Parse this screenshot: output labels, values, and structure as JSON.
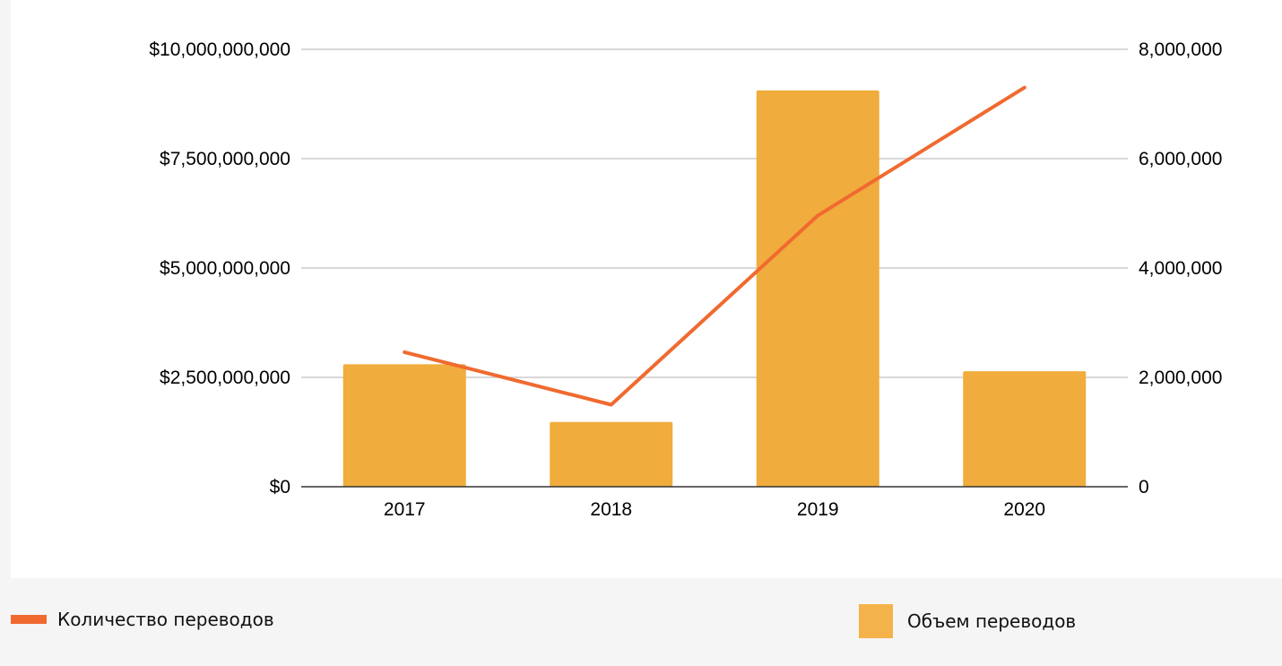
{
  "chart_data": {
    "type": "bar",
    "categories": [
      "2017",
      "2018",
      "2019",
      "2020"
    ],
    "series": [
      {
        "name": "Объем переводов",
        "kind": "bar",
        "axis": "left",
        "values": [
          2800000000,
          1480000000,
          9060000000,
          2640000000
        ],
        "color": "#f0ac3c"
      },
      {
        "name": "Количество переводов",
        "kind": "line",
        "axis": "right",
        "values": [
          2460000,
          1500000,
          4960000,
          7300000
        ],
        "color": "#f06a30"
      }
    ],
    "left_axis": {
      "ylim": [
        0,
        10000000000
      ],
      "ticks": [
        0,
        2500000000,
        5000000000,
        7500000000,
        10000000000
      ],
      "tick_labels": [
        "$0",
        "$2,500,000,000",
        "$5,000,000,000",
        "$7,500,000,000",
        "$10,000,000,000"
      ]
    },
    "right_axis": {
      "ylim": [
        0,
        8000000
      ],
      "ticks": [
        0,
        2000000,
        4000000,
        6000000,
        8000000
      ],
      "tick_labels": [
        "0",
        "2,000,000",
        "4,000,000",
        "6,000,000",
        "8,000,000"
      ]
    },
    "grid": true,
    "legend_position": "bottom"
  },
  "legend": {
    "line_label": "Количество переводов",
    "bar_label": "Объем переводов",
    "line_color": "#f06a30",
    "bar_color": "#f4b34a"
  }
}
